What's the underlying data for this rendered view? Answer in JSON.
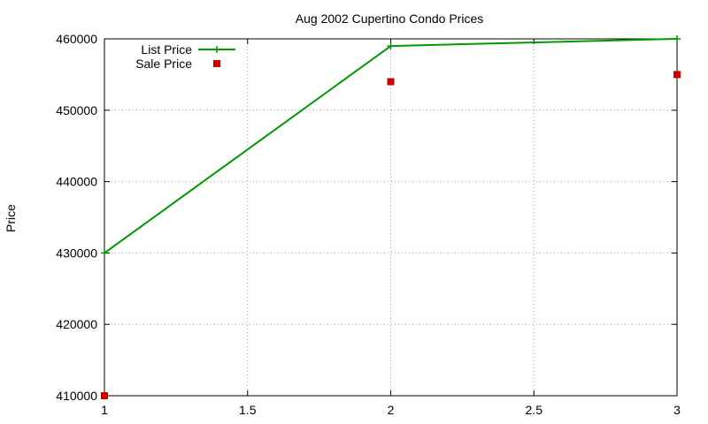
{
  "chart_data": {
    "type": "line",
    "title": "Aug 2002 Cupertino Condo Prices",
    "xlabel": "",
    "ylabel": "Price",
    "xlim": [
      1,
      3
    ],
    "ylim": [
      410000,
      460000
    ],
    "x_ticks": [
      1,
      1.5,
      2,
      2.5,
      3
    ],
    "x_tick_labels": [
      "1",
      "1.5",
      "2",
      "2.5",
      "3"
    ],
    "y_ticks": [
      410000,
      420000,
      430000,
      440000,
      450000,
      460000
    ],
    "y_tick_labels": [
      "410000",
      "420000",
      "430000",
      "440000",
      "450000",
      "460000"
    ],
    "grid": true,
    "legend_position": "top-left",
    "series": [
      {
        "name": "List Price",
        "style": "line-with-plus-markers",
        "color": "#009900",
        "x": [
          1,
          2,
          3
        ],
        "values": [
          430000,
          459000,
          460000
        ]
      },
      {
        "name": "Sale Price",
        "style": "square-markers",
        "color": "#cc0000",
        "x": [
          1,
          2,
          3
        ],
        "values": [
          410000,
          454000,
          455000
        ]
      }
    ]
  }
}
